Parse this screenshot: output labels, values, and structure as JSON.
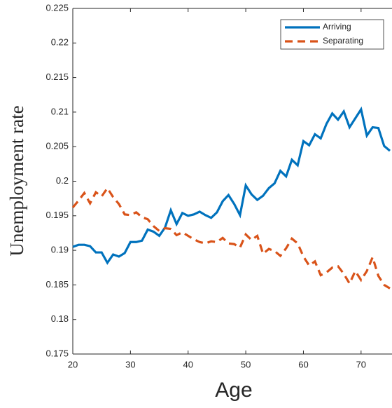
{
  "chart_data": {
    "type": "line",
    "xlabel": "Age",
    "ylabel": "Unemployment rate",
    "x": [
      20,
      21,
      22,
      23,
      24,
      25,
      26,
      27,
      28,
      29,
      30,
      31,
      32,
      33,
      34,
      35,
      36,
      37,
      38,
      39,
      40,
      41,
      42,
      43,
      44,
      45,
      46,
      47,
      48,
      49,
      50,
      51,
      52,
      53,
      54,
      55,
      56,
      57,
      58,
      59,
      60,
      61,
      62,
      63,
      64,
      65,
      66,
      67,
      68,
      69,
      70,
      71,
      72,
      73,
      74,
      75
    ],
    "series": [
      {
        "name": "Arriving",
        "color": "#0072bd",
        "dash": "solid",
        "values": [
          0.1905,
          0.1908,
          0.1908,
          0.1906,
          0.1897,
          0.1897,
          0.1882,
          0.1894,
          0.1891,
          0.1896,
          0.1912,
          0.1912,
          0.1914,
          0.193,
          0.1927,
          0.1921,
          0.1933,
          0.1958,
          0.1938,
          0.1954,
          0.195,
          0.1952,
          0.1956,
          0.1951,
          0.1947,
          0.1955,
          0.1971,
          0.198,
          0.1967,
          0.1951,
          0.1994,
          0.1981,
          0.1973,
          0.1979,
          0.199,
          0.1997,
          0.2015,
          0.2007,
          0.2031,
          0.2023,
          0.2058,
          0.2052,
          0.2068,
          0.2062,
          0.2083,
          0.2098,
          0.2089,
          0.2101,
          0.2078,
          0.2091,
          0.2104,
          0.2066,
          0.2078,
          0.2077,
          0.2051,
          0.2044
        ]
      },
      {
        "name": "Separating",
        "color": "#d95319",
        "dash": "dashed",
        "values": [
          0.1962,
          0.1972,
          0.1983,
          0.1968,
          0.1984,
          0.1978,
          0.199,
          0.1977,
          0.1967,
          0.1952,
          0.1951,
          0.1955,
          0.1948,
          0.1945,
          0.1935,
          0.1928,
          0.1932,
          0.1931,
          0.1922,
          0.1926,
          0.1921,
          0.1916,
          0.1912,
          0.191,
          0.1913,
          0.1912,
          0.1918,
          0.191,
          0.1909,
          0.1904,
          0.1923,
          0.1915,
          0.1921,
          0.1895,
          0.1902,
          0.1899,
          0.1892,
          0.1903,
          0.1917,
          0.191,
          0.1891,
          0.1878,
          0.1884,
          0.1864,
          0.1868,
          0.1875,
          0.1877,
          0.1866,
          0.1852,
          0.187,
          0.1857,
          0.187,
          0.189,
          0.1863,
          0.185,
          0.1845
        ]
      }
    ],
    "xlim": [
      20,
      75
    ],
    "ylim": [
      0.175,
      0.225
    ],
    "xticks": [
      20,
      30,
      40,
      50,
      60,
      70
    ],
    "yticks": [
      0.175,
      0.18,
      0.185,
      0.19,
      0.195,
      0.2,
      0.205,
      0.21,
      0.215,
      0.22,
      0.225
    ],
    "grid": false,
    "legend": "northeast"
  }
}
